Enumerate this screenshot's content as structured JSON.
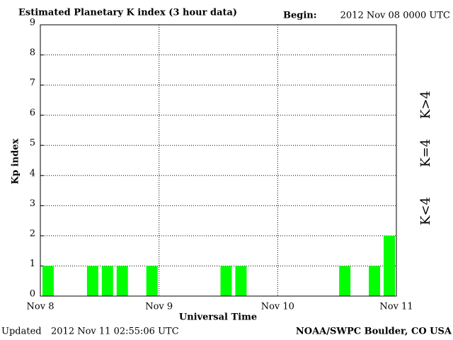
{
  "chart_data": {
    "type": "histogram",
    "title": "Estimated Planetary K index (3 hour data)",
    "begin_label": "Begin:",
    "begin_value": "2012 Nov 08 0000 UTC",
    "y_label": "Kp index",
    "x_label": "Universal Time",
    "updated_label": "Updated",
    "updated_value": "2012 Nov 11 02:55:06 UTC",
    "credit": "NOAA/SWPC Boulder, CO USA",
    "bins": [
      0,
      3,
      6,
      9,
      12,
      15,
      18,
      21,
      24,
      27,
      30,
      33,
      36,
      39,
      42,
      45,
      48,
      51,
      54,
      57,
      60,
      63,
      66,
      69,
      72
    ],
    "values": [
      1,
      0,
      0,
      1,
      1,
      1,
      0,
      1,
      0,
      0,
      0,
      0,
      1,
      1,
      0,
      0,
      0,
      0,
      0,
      0,
      1,
      0,
      1,
      2
    ],
    "color": "#00ff00",
    "xlim": [
      0,
      72
    ],
    "xticks": [
      {
        "value": 0,
        "label": "Nov 8"
      },
      {
        "value": 24,
        "label": "Nov 9"
      },
      {
        "value": 48,
        "label": "Nov 10"
      },
      {
        "value": 72,
        "label": "Nov 11"
      }
    ],
    "ylim": [
      0,
      9
    ],
    "yticks": [
      0,
      1,
      2,
      3,
      4,
      5,
      6,
      7,
      8,
      9
    ],
    "grid": true,
    "legend": [
      {
        "name": "K<4",
        "color": "#00ff00"
      },
      {
        "name": "K=4",
        "color": "#ffd700"
      },
      {
        "name": "K>4",
        "color": "#ff2000"
      }
    ]
  }
}
